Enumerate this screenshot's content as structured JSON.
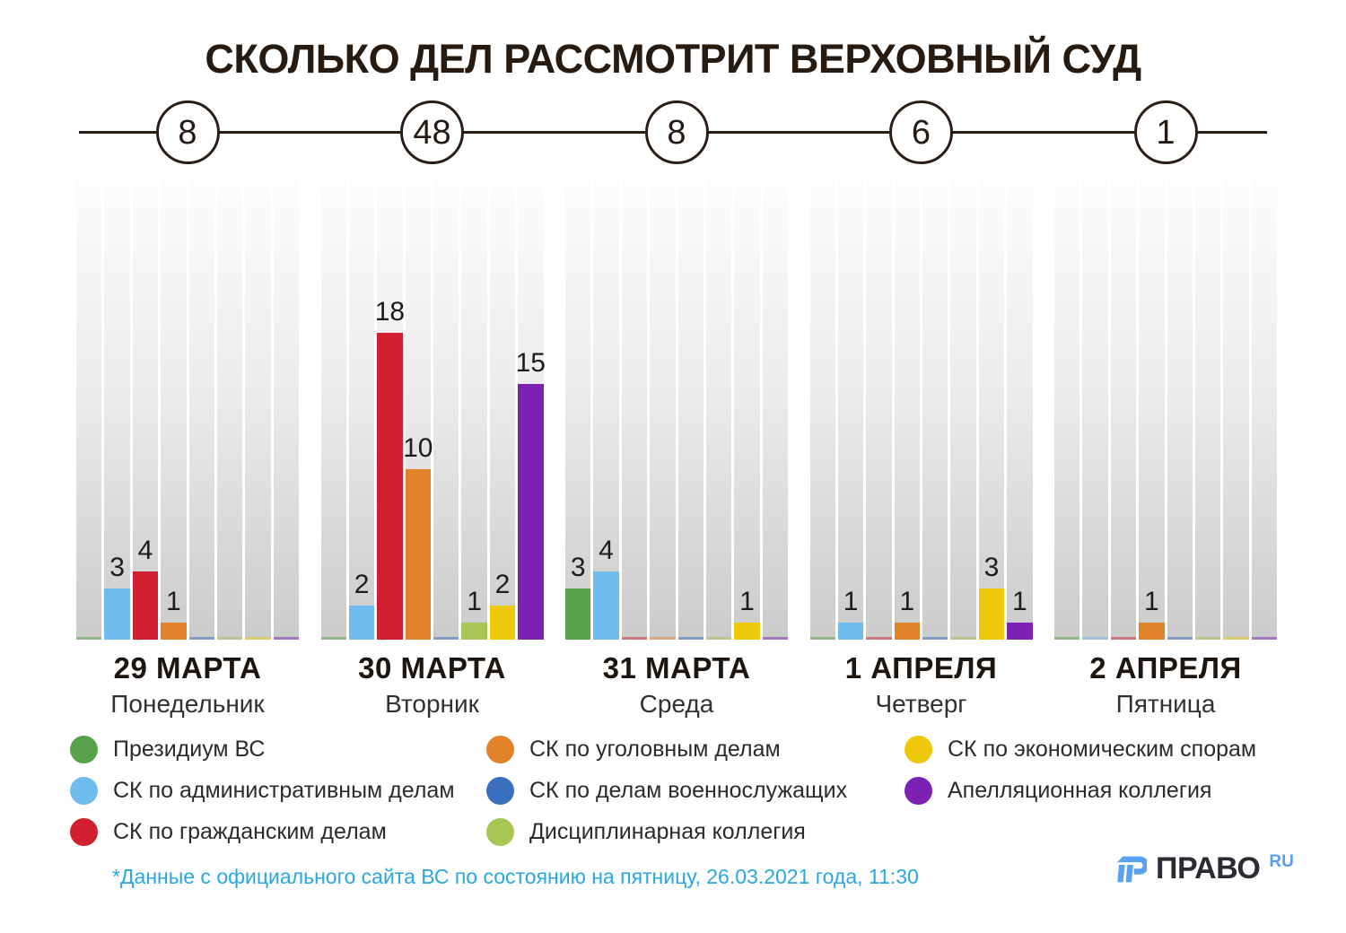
{
  "title": "СКОЛЬКО ДЕЛ РАССМОТРИТ ВЕРХОВНЫЙ СУД",
  "chart_data": {
    "type": "bar",
    "title": "СКОЛЬКО ДЕЛ РАССМОТРИТ ВЕРХОВНЫЙ СУД",
    "categories": [
      "Президиум ВС",
      "СК по административным делам",
      "СК по гражданским делам",
      "СК по уголовным делам",
      "СК по делам военнослужащих",
      "Дисциплинарная коллегия",
      "СК по экономическим спорам",
      "Апелляционная коллегия"
    ],
    "colors": [
      "#57a24a",
      "#6fbdee",
      "#d0202f",
      "#e2832a",
      "#3a6fc0",
      "#a8c653",
      "#eec90b",
      "#7b22b5"
    ],
    "days": [
      {
        "date": "29 МАРТА",
        "weekday": "Понедельник",
        "total": 8,
        "values": [
          0,
          3,
          4,
          1,
          0,
          0,
          0,
          0
        ]
      },
      {
        "date": "30 МАРТА",
        "weekday": "Вторник",
        "total": 48,
        "values": [
          0,
          2,
          18,
          10,
          0,
          1,
          2,
          15
        ]
      },
      {
        "date": "31 МАРТА",
        "weekday": "Среда",
        "total": 8,
        "values": [
          3,
          4,
          0,
          0,
          0,
          0,
          1,
          0
        ]
      },
      {
        "date": "1 АПРЕЛЯ",
        "weekday": "Четверг",
        "total": 6,
        "values": [
          0,
          1,
          0,
          1,
          0,
          0,
          3,
          1
        ]
      },
      {
        "date": "2 АПРЕЛЯ",
        "weekday": "Пятница",
        "total": 1,
        "values": [
          0,
          0,
          0,
          1,
          0,
          0,
          0,
          0
        ]
      }
    ],
    "ylim": [
      0,
      27
    ],
    "grid": false,
    "legend_position": "bottom"
  },
  "legend": {
    "columns": [
      [
        0,
        1,
        2
      ],
      [
        3,
        4,
        5
      ],
      [
        6,
        7
      ]
    ]
  },
  "footer": {
    "note": "*Данные с официального сайта ВС по состоянию на пятницу, 26.03.2021 года, 11:30",
    "note_color": "#29a8e0",
    "logo_word": "ПРАВО",
    "logo_suffix": "RU"
  },
  "accent_colors": {
    "timeline_ink": "#2b1d16",
    "logo_blue": "#58a1f3"
  }
}
